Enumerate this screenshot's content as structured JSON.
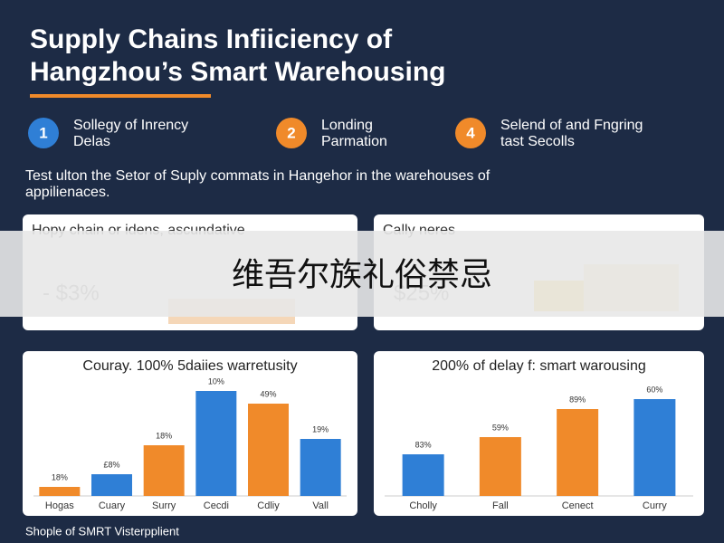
{
  "header": {
    "title_lines": [
      "Supply Chains Infiiciency of",
      "Hangzhou’s Smart Warehousing"
    ]
  },
  "steps": [
    {
      "number": "1",
      "lines": [
        "Sollegy of Inrency",
        "Delas"
      ],
      "color": "#2f7fd6"
    },
    {
      "number": "2",
      "lines": [
        "Londing",
        "Parmation"
      ],
      "color": "#f08a2a"
    },
    {
      "number": "4",
      "lines": [
        "Selend of and Fngring",
        "tast Secolls"
      ],
      "color": "#f08a2a"
    }
  ],
  "description": [
    "Test ulton the Setor of Suply commats in Hangehor in the warehouses of",
    "appilienaces."
  ],
  "cards": [
    {
      "title": "Hopy chain or idens, ascundative",
      "figure": "- $3%"
    },
    {
      "title": "Cally neres",
      "figure": "$25%"
    }
  ],
  "overlay": "维吾尔族礼俗禁忌",
  "chart_data": [
    {
      "type": "bar",
      "title": "Couray. 100% 5daiies warretusity",
      "categories": [
        "Hogas",
        "Cuary",
        "Surry",
        "Cecdi",
        "Cdliy",
        "Vall"
      ],
      "values": [
        10,
        24,
        56,
        116,
        102,
        63
      ],
      "bar_texts": [
        "18%",
        "£8%",
        "18%",
        "10%",
        "49%",
        "19%"
      ],
      "colors": [
        "#f08a2a",
        "#2f7fd6",
        "#f08a2a",
        "#2f7fd6",
        "#f08a2a",
        "#2f7fd6"
      ],
      "ylim": [
        0,
        120
      ]
    },
    {
      "type": "bar",
      "title": "200% of delay f: smart warousing",
      "categories": [
        "Cholly",
        "Fall",
        "Cenect",
        "Curry"
      ],
      "values": [
        46,
        65,
        96,
        107
      ],
      "bar_texts": [
        "83%",
        "59%",
        "89%",
        "60%"
      ],
      "colors": [
        "#2f7fd6",
        "#f08a2a",
        "#f08a2a",
        "#2f7fd6"
      ],
      "ylim": [
        0,
        120
      ]
    }
  ],
  "footer": "Shople of SMRT Visterpplient"
}
